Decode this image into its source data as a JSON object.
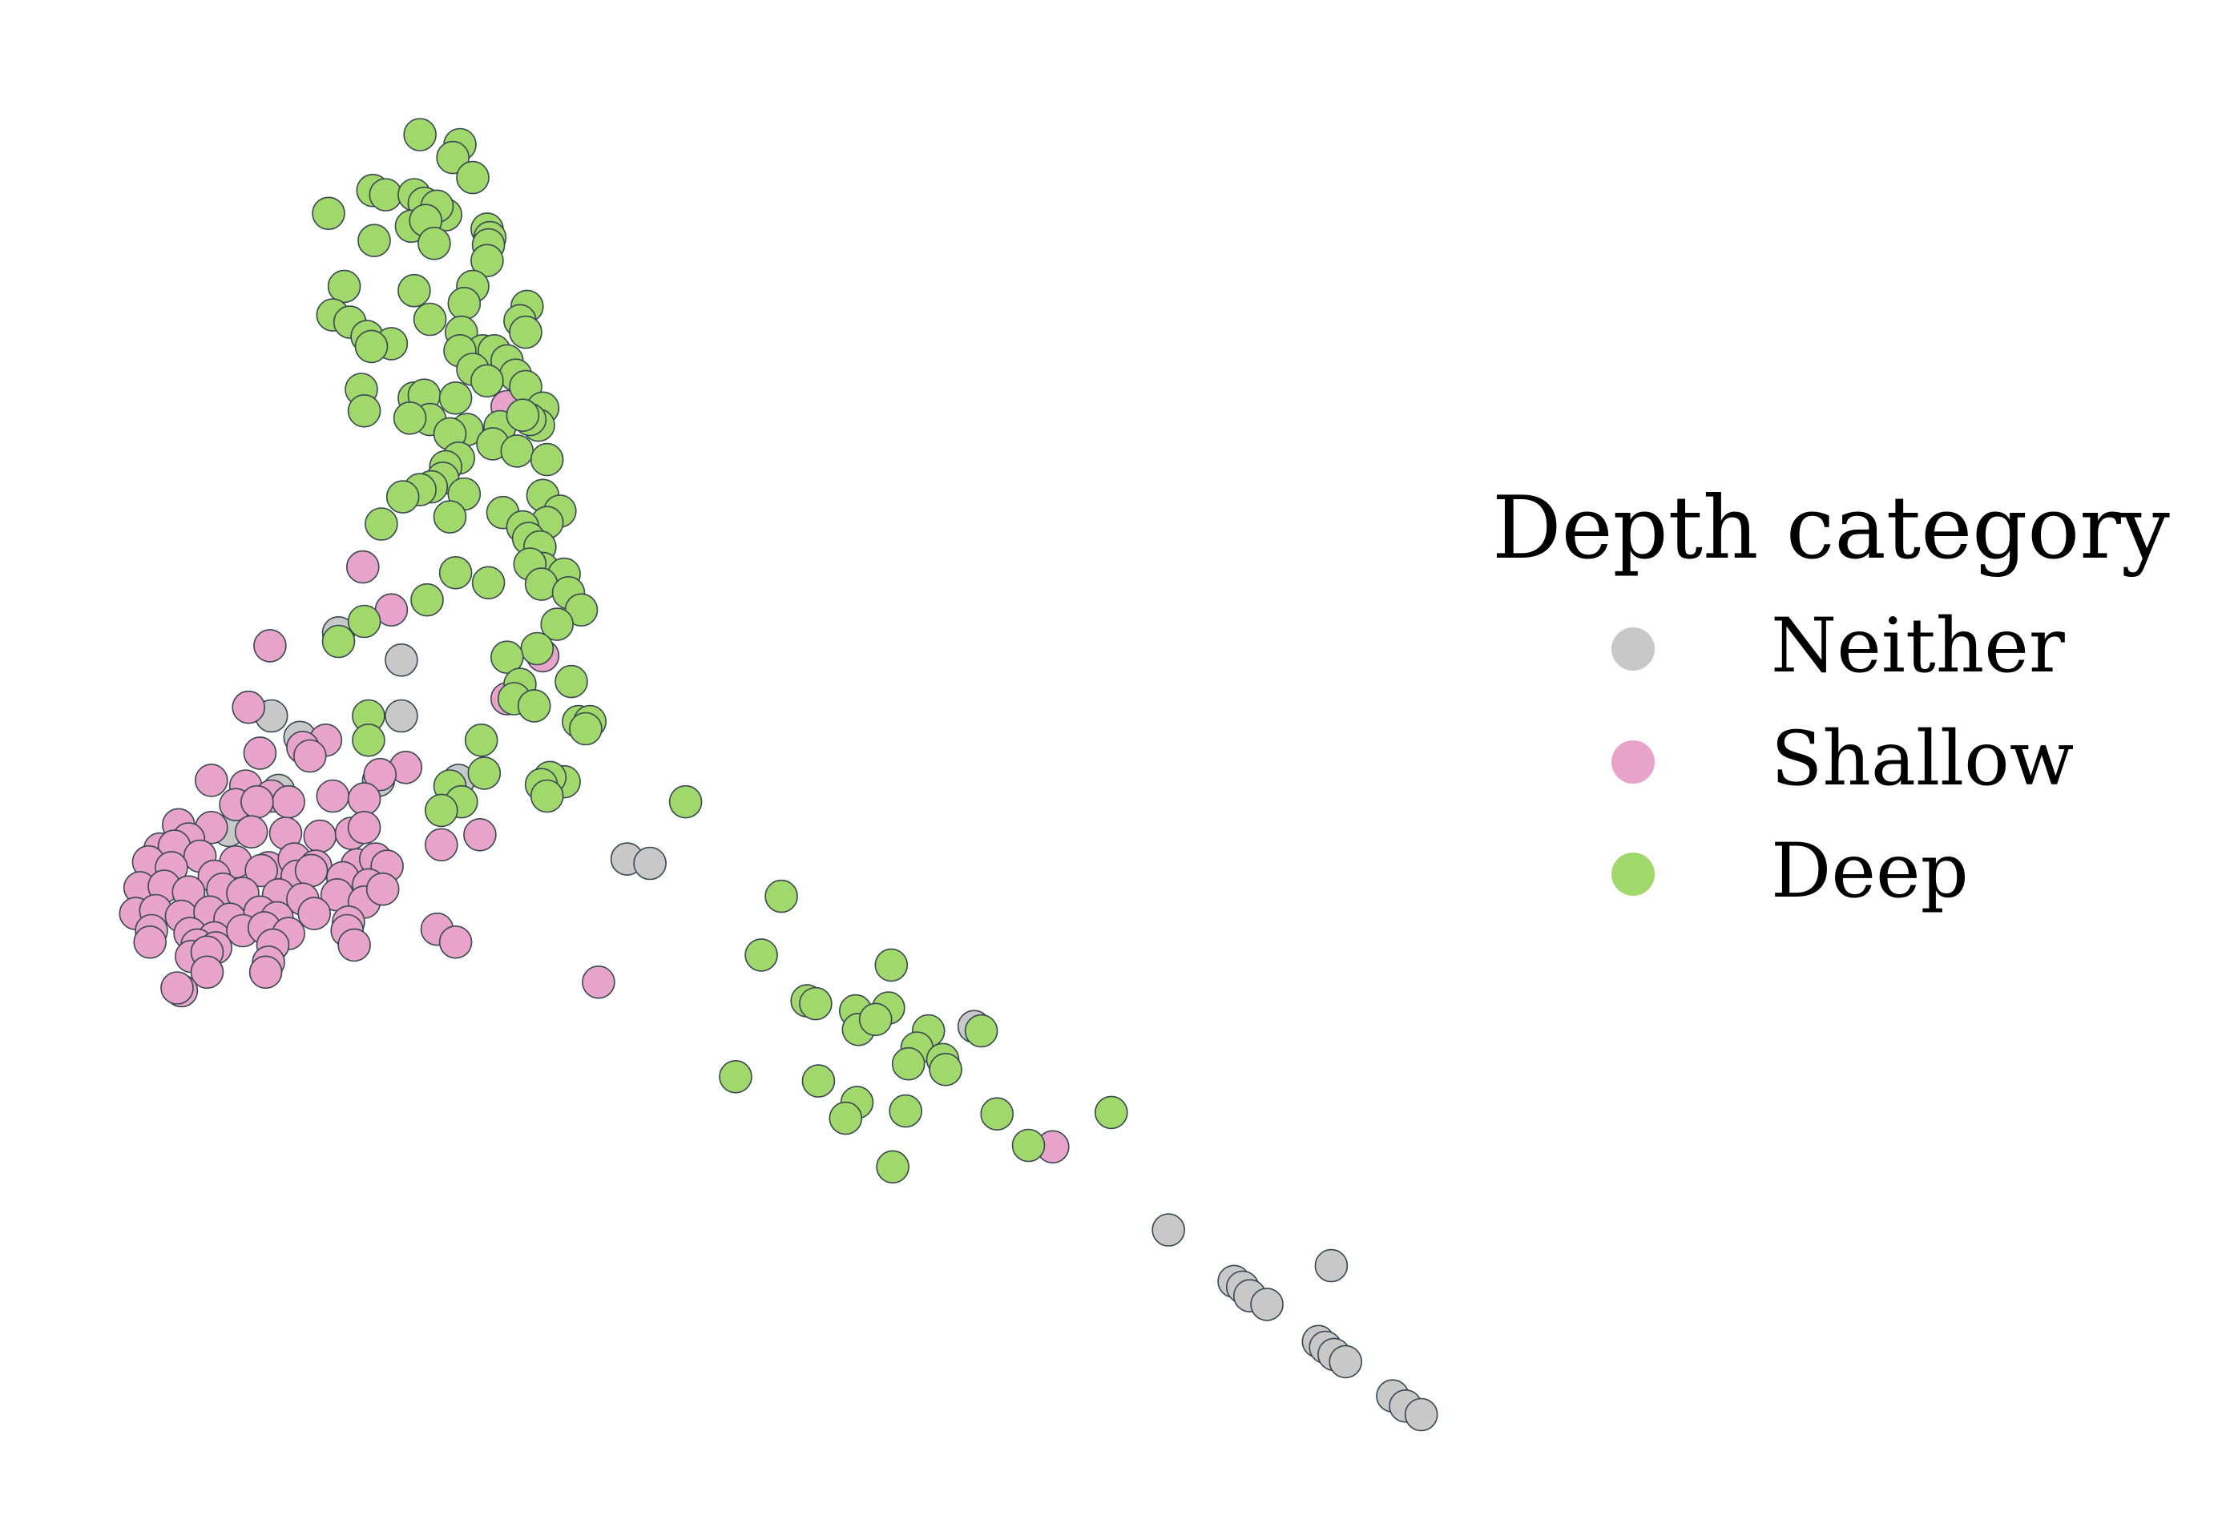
{
  "chart_data": {
    "type": "scatter",
    "title": "",
    "xlabel": "",
    "ylabel": "",
    "axes_visible": false,
    "grid": false,
    "xlim": [
      0,
      1550
    ],
    "ylim": [
      1070,
      0
    ],
    "legend": {
      "title": "Depth category",
      "placement": "right",
      "entries": [
        "Neither",
        "Shallow",
        "Deep"
      ]
    },
    "colors": {
      "Neither": "#c8c8c8",
      "Shallow": "#e8a3cb",
      "Deep": "#a1d86c",
      "edge": "#37474f"
    },
    "series": [
      {
        "name": "Neither",
        "points": [
          [
            237,
            442
          ],
          [
            281,
            461
          ],
          [
            190,
            500
          ],
          [
            281,
            500
          ],
          [
            210,
            515
          ],
          [
            195,
            552
          ],
          [
            265,
            545
          ],
          [
            321,
            545
          ],
          [
            439,
            600
          ],
          [
            455,
            603
          ],
          [
            682,
            717
          ],
          [
            818,
            859
          ],
          [
            932,
            884
          ],
          [
            864,
            895
          ],
          [
            870,
            899
          ],
          [
            875,
            905
          ],
          [
            887,
            911
          ],
          [
            923,
            937
          ],
          [
            928,
            941
          ],
          [
            934,
            946
          ],
          [
            942,
            951
          ],
          [
            975,
            975
          ],
          [
            984,
            982
          ],
          [
            995,
            988
          ],
          [
            160,
            580
          ],
          [
            175,
            640
          ],
          [
            150,
            620
          ]
        ]
      },
      {
        "name": "Shallow",
        "points": [
          [
            355,
            284
          ],
          [
            254,
            396
          ],
          [
            274,
            426
          ],
          [
            189,
            451
          ],
          [
            380,
            458
          ],
          [
            174,
            494
          ],
          [
            355,
            488
          ],
          [
            228,
            517
          ],
          [
            182,
            526
          ],
          [
            212,
            522
          ],
          [
            217,
            528
          ],
          [
            284,
            536
          ],
          [
            148,
            545
          ],
          [
            266,
            541
          ],
          [
            172,
            549
          ],
          [
            190,
            556
          ],
          [
            233,
            556
          ],
          [
            255,
            558
          ],
          [
            125,
            576
          ],
          [
            148,
            578
          ],
          [
            165,
            562
          ],
          [
            202,
            560
          ],
          [
            180,
            560
          ],
          [
            132,
            586
          ],
          [
            176,
            581
          ],
          [
            200,
            582
          ],
          [
            224,
            584
          ],
          [
            246,
            582
          ],
          [
            255,
            578
          ],
          [
            112,
            593
          ],
          [
            122,
            591
          ],
          [
            140,
            598
          ],
          [
            165,
            602
          ],
          [
            188,
            606
          ],
          [
            206,
            600
          ],
          [
            221,
            605
          ],
          [
            250,
            604
          ],
          [
            263,
            600
          ],
          [
            271,
            605
          ],
          [
            104,
            602
          ],
          [
            120,
            606
          ],
          [
            150,
            612
          ],
          [
            183,
            608
          ],
          [
            208,
            612
          ],
          [
            218,
            608
          ],
          [
            240,
            613
          ],
          [
            258,
            618
          ],
          [
            98,
            620
          ],
          [
            115,
            619
          ],
          [
            132,
            623
          ],
          [
            156,
            621
          ],
          [
            170,
            624
          ],
          [
            195,
            625
          ],
          [
            212,
            628
          ],
          [
            236,
            625
          ],
          [
            255,
            630
          ],
          [
            268,
            621
          ],
          [
            95,
            638
          ],
          [
            109,
            636
          ],
          [
            127,
            640
          ],
          [
            147,
            637
          ],
          [
            161,
            642
          ],
          [
            182,
            637
          ],
          [
            194,
            641
          ],
          [
            220,
            638
          ],
          [
            244,
            644
          ],
          [
            106,
            650
          ],
          [
            133,
            652
          ],
          [
            150,
            655
          ],
          [
            170,
            650
          ],
          [
            185,
            648
          ],
          [
            202,
            652
          ],
          [
            243,
            650
          ],
          [
            105,
            658
          ],
          [
            138,
            660
          ],
          [
            151,
            662
          ],
          [
            191,
            660
          ],
          [
            248,
            660
          ],
          [
            309,
            590
          ],
          [
            336,
            583
          ],
          [
            306,
            649
          ],
          [
            319,
            658
          ],
          [
            134,
            668
          ],
          [
            145,
            665
          ],
          [
            188,
            672
          ],
          [
            145,
            679
          ],
          [
            186,
            679
          ],
          [
            127,
            692
          ],
          [
            124,
            690
          ],
          [
            419,
            686
          ],
          [
            737,
            801
          ]
        ]
      },
      {
        "name": "Deep",
        "points": [
          [
            294,
            94
          ],
          [
            322,
            101
          ],
          [
            317,
            110
          ],
          [
            331,
            124
          ],
          [
            261,
            133
          ],
          [
            270,
            136
          ],
          [
            290,
            136
          ],
          [
            297,
            142
          ],
          [
            230,
            149
          ],
          [
            312,
            150
          ],
          [
            306,
            144
          ],
          [
            288,
            158
          ],
          [
            341,
            160
          ],
          [
            343,
            166
          ],
          [
            342,
            171
          ],
          [
            298,
            154
          ],
          [
            304,
            170
          ],
          [
            262,
            168
          ],
          [
            341,
            182
          ],
          [
            331,
            200
          ],
          [
            241,
            200
          ],
          [
            290,
            203
          ],
          [
            325,
            212
          ],
          [
            369,
            214
          ],
          [
            233,
            220
          ],
          [
            301,
            223
          ],
          [
            245,
            225
          ],
          [
            364,
            224
          ],
          [
            368,
            232
          ],
          [
            323,
            232
          ],
          [
            257,
            235
          ],
          [
            274,
            240
          ],
          [
            260,
            242
          ],
          [
            338,
            245
          ],
          [
            346,
            245
          ],
          [
            355,
            252
          ],
          [
            322,
            245
          ],
          [
            331,
            258
          ],
          [
            361,
            262
          ],
          [
            341,
            266
          ],
          [
            253,
            272
          ],
          [
            368,
            270
          ],
          [
            290,
            278
          ],
          [
            297,
            276
          ],
          [
            319,
            278
          ],
          [
            380,
            285
          ],
          [
            255,
            287
          ],
          [
            301,
            293
          ],
          [
            287,
            292
          ],
          [
            327,
            300
          ],
          [
            350,
            298
          ],
          [
            377,
            297
          ],
          [
            371,
            293
          ],
          [
            366,
            290
          ],
          [
            315,
            303
          ],
          [
            345,
            310
          ],
          [
            362,
            315
          ],
          [
            383,
            321
          ],
          [
            321,
            320
          ],
          [
            312,
            326
          ],
          [
            310,
            334
          ],
          [
            302,
            340
          ],
          [
            294,
            342
          ],
          [
            282,
            347
          ],
          [
            325,
            345
          ],
          [
            315,
            361
          ],
          [
            352,
            358
          ],
          [
            380,
            346
          ],
          [
            392,
            357
          ],
          [
            383,
            365
          ],
          [
            366,
            368
          ],
          [
            267,
            366
          ],
          [
            370,
            376
          ],
          [
            378,
            382
          ],
          [
            380,
            397
          ],
          [
            395,
            401
          ],
          [
            371,
            394
          ],
          [
            319,
            400
          ],
          [
            342,
            407
          ],
          [
            379,
            408
          ],
          [
            398,
            414
          ],
          [
            299,
            419
          ],
          [
            407,
            426
          ],
          [
            255,
            434
          ],
          [
            390,
            436
          ],
          [
            237,
            448
          ],
          [
            376,
            453
          ],
          [
            355,
            459
          ],
          [
            400,
            476
          ],
          [
            364,
            478
          ],
          [
            360,
            488
          ],
          [
            374,
            493
          ],
          [
            405,
            504
          ],
          [
            413,
            504
          ],
          [
            410,
            509
          ],
          [
            258,
            500
          ],
          [
            258,
            517
          ],
          [
            337,
            517
          ],
          [
            339,
            540
          ],
          [
            395,
            546
          ],
          [
            385,
            543
          ],
          [
            379,
            548
          ],
          [
            383,
            556
          ],
          [
            315,
            549
          ],
          [
            323,
            560
          ],
          [
            309,
            566
          ],
          [
            480,
            560
          ],
          [
            547,
            626
          ],
          [
            533,
            667
          ],
          [
            624,
            674
          ],
          [
            565,
            699
          ],
          [
            571,
            701
          ],
          [
            599,
            706
          ],
          [
            622,
            704
          ],
          [
            601,
            719
          ],
          [
            613,
            712
          ],
          [
            650,
            720
          ],
          [
            642,
            732
          ],
          [
            636,
            743
          ],
          [
            660,
            740
          ],
          [
            662,
            747
          ],
          [
            687,
            720
          ],
          [
            515,
            752
          ],
          [
            573,
            755
          ],
          [
            600,
            770
          ],
          [
            592,
            781
          ],
          [
            634,
            776
          ],
          [
            698,
            778
          ],
          [
            778,
            777
          ],
          [
            720,
            800
          ],
          [
            625,
            815
          ]
        ]
      }
    ]
  }
}
